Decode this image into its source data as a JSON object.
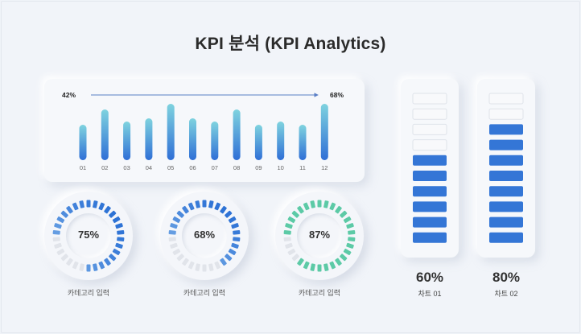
{
  "title": "KPI 분석 (KPI Analytics)",
  "colors": {
    "blue_top": "#78cde0",
    "blue_bottom": "#2e6fd6",
    "segment_blue": "#3476d6",
    "segment_green": "#5ccaa6",
    "segment_empty": "#e1e4ea"
  },
  "chart_data": [
    {
      "type": "bar",
      "categories": [
        "01",
        "02",
        "03",
        "04",
        "05",
        "06",
        "07",
        "08",
        "09",
        "10",
        "11",
        "12"
      ],
      "values": [
        44,
        63,
        48,
        52,
        70,
        52,
        48,
        63,
        44,
        48,
        44,
        70
      ],
      "ylim": [
        0,
        100
      ],
      "annotation": {
        "start_label": "42%",
        "end_label": "68%",
        "arrow": true
      }
    },
    {
      "type": "pie",
      "style": "segmented-donut",
      "value": 75,
      "value_label": "75%",
      "label": "카테고리 입력",
      "color": "blue-gradient"
    },
    {
      "type": "pie",
      "style": "segmented-donut",
      "value": 68,
      "value_label": "68%",
      "label": "카테고리 입력",
      "color": "blue-gradient"
    },
    {
      "type": "pie",
      "style": "segmented-donut",
      "value": 87,
      "value_label": "87%",
      "label": "카테고리 입력",
      "color": "green"
    },
    {
      "type": "bar",
      "style": "vertical-gauge",
      "value": 60,
      "segments": 10,
      "value_label": "60%",
      "label": "차트 01"
    },
    {
      "type": "bar",
      "style": "vertical-gauge",
      "value": 80,
      "segments": 10,
      "value_label": "80%",
      "label": "차트 02"
    }
  ]
}
